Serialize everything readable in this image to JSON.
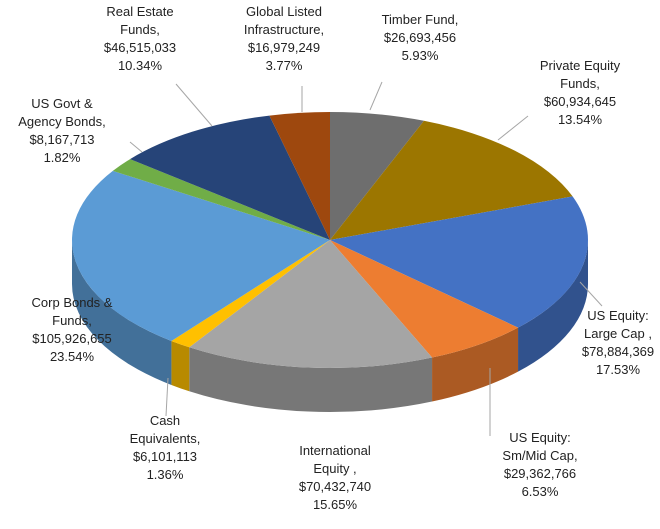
{
  "chart_data": {
    "type": "pie3d",
    "categories": [
      "Timber Fund,",
      "Private Equity Funds,",
      "US Equity: Large Cap ,",
      "US Equity: Sm/Mid Cap,",
      "International Equity ,",
      "Cash Equivalents,",
      "Corp Bonds & Funds,",
      "US Govt & Agency Bonds,",
      "Real Estate Funds,",
      "Global Listed Infrastructure,"
    ],
    "values": [
      26693456,
      60934645,
      78884369,
      29362766,
      70432740,
      6101113,
      105926655,
      8167713,
      46515033,
      16979249
    ],
    "value_labels": [
      "$26,693,456",
      "$60,934,645",
      "$78,884,369",
      "$29,362,766",
      "$70,432,740",
      "$6,101,113",
      "$105,926,655",
      "$8,167,713",
      "$46,515,033",
      "$16,979,249"
    ],
    "share_labels": [
      "5.93%",
      "13.54%",
      "17.53%",
      "6.53%",
      "15.65%",
      "1.36%",
      "23.54%",
      "1.82%",
      "10.34%",
      "3.77%"
    ],
    "colors": [
      "#6e6e6e",
      "#9c7600",
      "#4472c4",
      "#ed7d31",
      "#a5a5a5",
      "#ffc000",
      "#5b9bd5",
      "#70ad47",
      "#264478",
      "#9e480e"
    ]
  }
}
